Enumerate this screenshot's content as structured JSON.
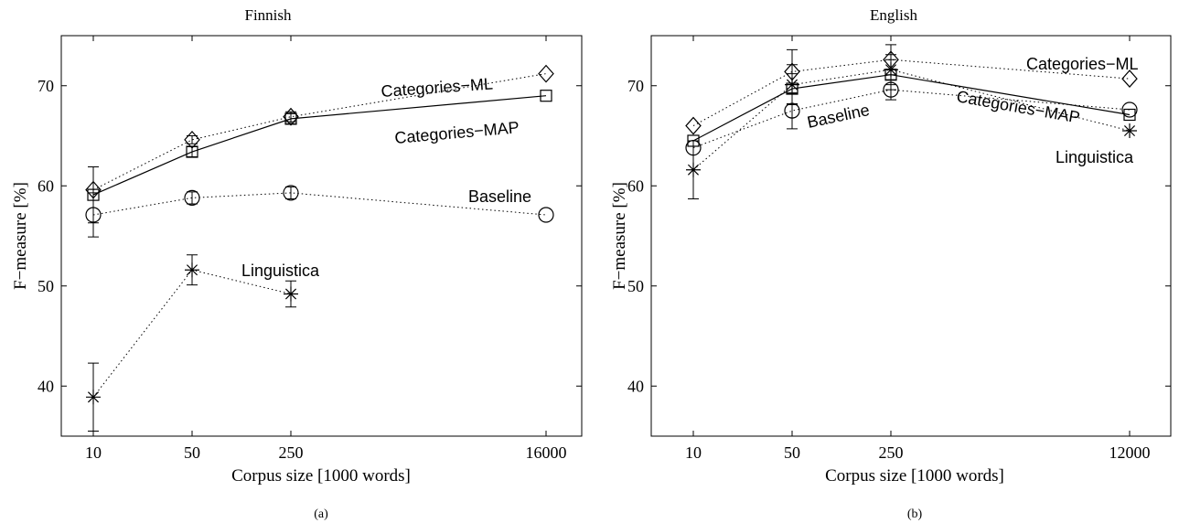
{
  "chart_data": [
    {
      "type": "line",
      "panel_label": "(a)",
      "title": "Finnish",
      "xlabel": "Corpus size [1000 words]",
      "ylabel": "F−measure [%]",
      "x_scale": "log",
      "x": [
        10,
        50,
        250,
        16000
      ],
      "xticks": [
        "10",
        "50",
        "250",
        "16000"
      ],
      "ylim": [
        35,
        75
      ],
      "yticks": [
        "40",
        "50",
        "60",
        "70"
      ],
      "grid": false,
      "series": [
        {
          "name": "Categories−ML",
          "marker": "diamond",
          "line": "dotted",
          "x": [
            10,
            50,
            250,
            16000
          ],
          "values": [
            59.6,
            64.6,
            66.9,
            71.2
          ],
          "error": [
            0,
            0.4,
            0.5,
            0
          ]
        },
        {
          "name": "Categories−MAP",
          "marker": "square",
          "line": "solid",
          "x": [
            10,
            50,
            250,
            16000
          ],
          "values": [
            59.1,
            63.4,
            66.7,
            69.0
          ],
          "error": [
            2.8,
            0.5,
            0.5,
            0
          ]
        },
        {
          "name": "Baseline",
          "marker": "circle",
          "line": "dotted",
          "x": [
            10,
            50,
            250,
            16000
          ],
          "values": [
            57.1,
            58.8,
            59.3,
            57.1
          ],
          "error": [
            2.2,
            0.6,
            0.6,
            0
          ]
        },
        {
          "name": "Linguistica",
          "marker": "asterisk",
          "line": "dotted",
          "x": [
            10,
            50,
            250
          ],
          "values": [
            38.9,
            51.6,
            49.2
          ],
          "error": [
            3.4,
            1.5,
            1.3
          ]
        }
      ],
      "annotations": [
        "Categories−ML",
        "Categories−MAP",
        "Baseline",
        "Linguistica"
      ]
    },
    {
      "type": "line",
      "panel_label": "(b)",
      "title": "English",
      "xlabel": "Corpus size [1000 words]",
      "ylabel": "F−measure [%]",
      "x_scale": "log",
      "x": [
        10,
        50,
        250,
        12000
      ],
      "xticks": [
        "10",
        "50",
        "250",
        "12000"
      ],
      "ylim": [
        35,
        75
      ],
      "yticks": [
        "40",
        "50",
        "60",
        "70"
      ],
      "grid": false,
      "series": [
        {
          "name": "Categories−ML",
          "marker": "diamond",
          "line": "dotted",
          "x": [
            10,
            50,
            250,
            12000
          ],
          "values": [
            66.0,
            71.4,
            72.6,
            70.7
          ],
          "error": [
            0,
            2.2,
            1.5,
            0
          ]
        },
        {
          "name": "Categories−MAP",
          "marker": "square",
          "line": "solid",
          "x": [
            10,
            50,
            250,
            12000
          ],
          "values": [
            64.5,
            69.7,
            71.1,
            67.1
          ],
          "error": [
            0,
            1.5,
            1.5,
            0
          ]
        },
        {
          "name": "Baseline",
          "marker": "circle",
          "line": "dotted",
          "x": [
            10,
            50,
            250,
            12000
          ],
          "values": [
            63.8,
            67.5,
            69.6,
            67.6
          ],
          "error": [
            0,
            1.8,
            1.0,
            0
          ]
        },
        {
          "name": "Linguistica",
          "marker": "asterisk",
          "line": "dotted",
          "x": [
            10,
            50,
            250,
            12000
          ],
          "values": [
            61.6,
            70.1,
            71.6,
            65.5
          ],
          "error": [
            2.9,
            2.0,
            1.5,
            0
          ]
        }
      ],
      "annotations": [
        "Categories−ML",
        "Categories−MAP",
        "Baseline",
        "Linguistica"
      ]
    }
  ]
}
